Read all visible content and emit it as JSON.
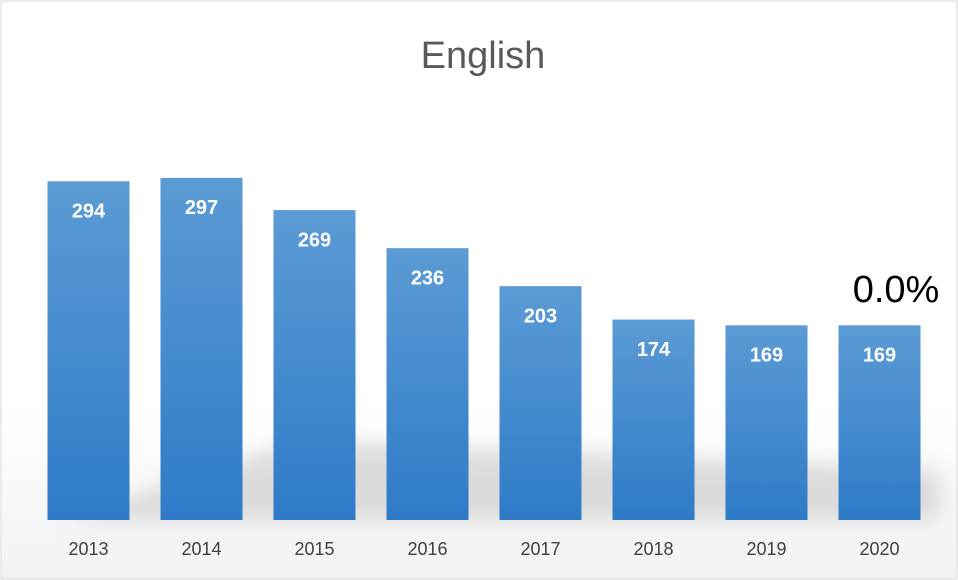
{
  "chart_data": {
    "type": "bar",
    "title": "English",
    "categories": [
      "2013",
      "2014",
      "2015",
      "2016",
      "2017",
      "2018",
      "2019",
      "2020"
    ],
    "values": [
      294,
      297,
      269,
      236,
      203,
      174,
      169,
      169
    ],
    "color": "#4a90d6",
    "ylim": [
      0,
      300
    ],
    "annotation": "0.0%"
  }
}
